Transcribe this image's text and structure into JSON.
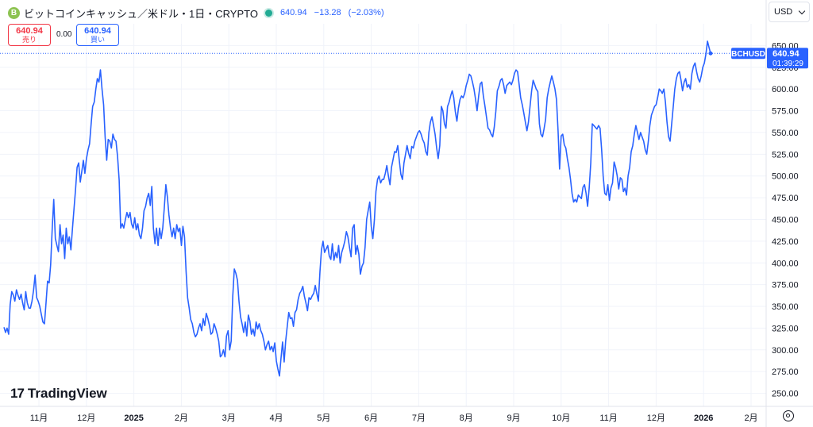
{
  "header": {
    "coin_icon_glyph": "B",
    "symbol_label": "ビットコインキャッシュ／米ドル・1日・CRYPTO",
    "last": "640.94",
    "change": "−13.28",
    "change_pct": "(−2.03%)"
  },
  "trade": {
    "sell_price": "640.94",
    "sell_label": "売り",
    "spread": "0.00",
    "buy_price": "640.94",
    "buy_label": "買い"
  },
  "currency": {
    "label": "USD"
  },
  "logo": {
    "mark": "17",
    "text": "TradingView"
  },
  "colors": {
    "line": "#2962ff",
    "grid": "#f0f3fa",
    "badge": "#2962ff"
  },
  "chart_data": {
    "type": "line",
    "title": "",
    "series": [
      {
        "name": "BCHUSD",
        "values": [
          326,
          320,
          325,
          318,
          352,
          367,
          363,
          356,
          369,
          363,
          358,
          364,
          354,
          346,
          367,
          354,
          348,
          348,
          356,
          368,
          386,
          360,
          356,
          350,
          341,
          332,
          330,
          353,
          379,
          377,
          398,
          440,
          473,
          428,
          420,
          413,
          444,
          422,
          432,
          405,
          440,
          422,
          430,
          415,
          440,
          462,
          485,
          510,
          515,
          493,
          505,
          518,
          503,
          520,
          530,
          537,
          560,
          580,
          585,
          600,
          612,
          608,
          622,
          600,
          582,
          545,
          518,
          542,
          540,
          532,
          548,
          542,
          540,
          522,
          495,
          440,
          445,
          440,
          450,
          458,
          452,
          458,
          445,
          440,
          452,
          438,
          445,
          432,
          428,
          440,
          460,
          465,
          475,
          480,
          466,
          488,
          440,
          422,
          440,
          420,
          440,
          428,
          440,
          463,
          490,
          476,
          455,
          440,
          430,
          440,
          428,
          444,
          436,
          440,
          420,
          442,
          430,
          390,
          360,
          348,
          335,
          330,
          320,
          315,
          318,
          325,
          330,
          322,
          336,
          328,
          342,
          336,
          328,
          318,
          320,
          330,
          325,
          318,
          310,
          292,
          294,
          300,
          292,
          316,
          322,
          300,
          310,
          362,
          393,
          388,
          380,
          356,
          338,
          330,
          320,
          332,
          316,
          340,
          333,
          318,
          324,
          316,
          332,
          324,
          330,
          322,
          318,
          310,
          300,
          306,
          310,
          300,
          304,
          298,
          308,
          287,
          278,
          270,
          290,
          309,
          286,
          310,
          327,
          343,
          336,
          337,
          327,
          343,
          346,
          358,
          365,
          368,
          373,
          362,
          354,
          345,
          360,
          358,
          362,
          365,
          374,
          365,
          356,
          390,
          415,
          425,
          412,
          416,
          420,
          408,
          404,
          422,
          403,
          412,
          406,
          420,
          400,
          412,
          418,
          425,
          436,
          430,
          418,
          407,
          440,
          444,
          410,
          420,
          410,
          387,
          396,
          400,
          418,
          450,
          460,
          470,
          442,
          428,
          450,
          482,
          496,
          500,
          492,
          496,
          496,
          503,
          512,
          500,
          490,
          510,
          519,
          528,
          527,
          535,
          518,
          502,
          496,
          515,
          525,
          535,
          526,
          520,
          534,
          532,
          540,
          545,
          550,
          552,
          548,
          542,
          538,
          528,
          524,
          550,
          562,
          568,
          558,
          548,
          532,
          520,
          535,
          580,
          575,
          560,
          555,
          580,
          585,
          592,
          598,
          590,
          574,
          563,
          578,
          588,
          592,
          590,
          595,
          604,
          610,
          617,
          615,
          608,
          600,
          588,
          575,
          592,
          606,
          608,
          592,
          581,
          568,
          555,
          553,
          548,
          545,
          556,
          574,
          598,
          603,
          610,
          612,
          605,
          595,
          604,
          606,
          608,
          605,
          610,
          618,
          622,
          620,
          605,
          590,
          582,
          572,
          562,
          552,
          562,
          580,
          598,
          610,
          605,
          600,
          597,
          560,
          548,
          545,
          554,
          565,
          590,
          600,
          608,
          615,
          608,
          600,
          588,
          552,
          508,
          546,
          548,
          536,
          532,
          520,
          510,
          496,
          480,
          470,
          473,
          470,
          478,
          476,
          474,
          487,
          490,
          480,
          465,
          486,
          515,
          560,
          558,
          556,
          554,
          558,
          555,
          530,
          500,
          480,
          478,
          490,
          472,
          486,
          492,
          516,
          510,
          500,
          485,
          498,
          496,
          482,
          486,
          478,
          500,
          510,
          528,
          535,
          548,
          558,
          550,
          542,
          550,
          545,
          540,
          530,
          525,
          540,
          558,
          570,
          575,
          580,
          582,
          590,
          600,
          598,
          595,
          600,
          585,
          562,
          545,
          540,
          560,
          580,
          600,
          612,
          618,
          620,
          610,
          598,
          608,
          612,
          602,
          605,
          600,
          618,
          626,
          630,
          620,
          612,
          608,
          615,
          625,
          630,
          640,
          655,
          648,
          641
        ]
      }
    ],
    "x_ticks": [
      "11月",
      "12月",
      "2025",
      "2月",
      "3月",
      "4月",
      "5月",
      "6月",
      "7月",
      "8月",
      "9月",
      "10月",
      "11月",
      "12月",
      "2026",
      "2月"
    ],
    "x_ticks_bold": [
      false,
      false,
      true,
      false,
      false,
      false,
      false,
      false,
      false,
      false,
      false,
      false,
      false,
      false,
      true,
      false
    ],
    "y_ticks": [
      250,
      275,
      300,
      325,
      350,
      375,
      400,
      425,
      450,
      475,
      500,
      525,
      550,
      575,
      600,
      625,
      650
    ],
    "ylim": [
      235,
      675
    ],
    "last_price_label": "640.94",
    "ticker_label": "BCHUSD",
    "countdown": "01:39:29",
    "grid": true
  }
}
